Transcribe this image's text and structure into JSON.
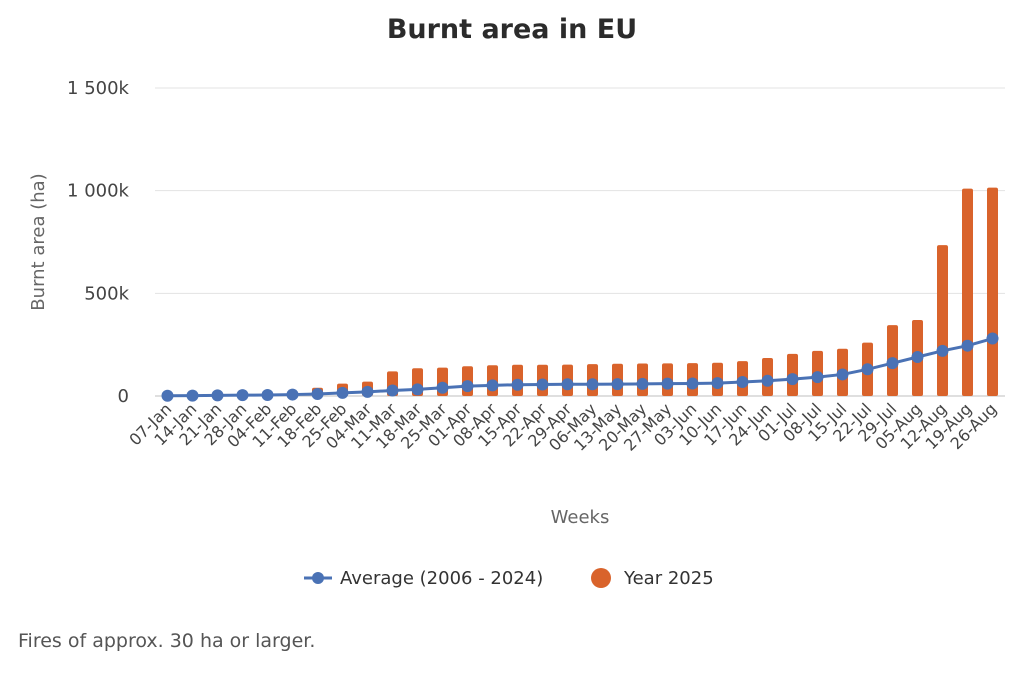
{
  "chart_data": {
    "type": "bar",
    "title": "Burnt area in EU",
    "xlabel": "Weeks",
    "ylabel": "Burnt area (ha)",
    "ylim": [
      0,
      1500000
    ],
    "yticks": [
      0,
      500000,
      1000000,
      1500000
    ],
    "ytick_labels": [
      "0",
      "500k",
      "1 000k",
      "1 500k"
    ],
    "grid": true,
    "legend_position": "bottom-center",
    "categories": [
      "07-Jan",
      "14-Jan",
      "21-Jan",
      "28-Jan",
      "04-Feb",
      "11-Feb",
      "18-Feb",
      "25-Feb",
      "04-Mar",
      "11-Mar",
      "18-Mar",
      "25-Mar",
      "01-Apr",
      "08-Apr",
      "15-Apr",
      "22-Apr",
      "29-Apr",
      "06-May",
      "13-May",
      "20-May",
      "27-May",
      "03-Jun",
      "10-Jun",
      "17-Jun",
      "24-Jun",
      "01-Jul",
      "08-Jul",
      "15-Jul",
      "22-Jul",
      "29-Jul",
      "05-Aug",
      "12-Aug",
      "19-Aug",
      "26-Aug"
    ],
    "series": [
      {
        "name": "Average (2006 - 2024)",
        "type": "line",
        "color": "#4a72b5",
        "values": [
          1000,
          2000,
          3000,
          4000,
          5000,
          7000,
          10000,
          15000,
          20000,
          27000,
          32000,
          40000,
          48000,
          52000,
          55000,
          56000,
          57000,
          57000,
          58000,
          59000,
          60000,
          61000,
          63000,
          68000,
          74000,
          82000,
          92000,
          105000,
          130000,
          160000,
          190000,
          220000,
          245000,
          280000
        ]
      },
      {
        "name": "Year 2025",
        "type": "bar",
        "color": "#d9632b",
        "values": [
          3000,
          5000,
          6000,
          8000,
          12000,
          18000,
          40000,
          60000,
          70000,
          120000,
          135000,
          138000,
          145000,
          150000,
          152000,
          152000,
          153000,
          155000,
          157000,
          158000,
          159000,
          160000,
          162000,
          170000,
          185000,
          205000,
          220000,
          230000,
          260000,
          345000,
          370000,
          735000,
          1010000,
          1015000
        ]
      }
    ]
  },
  "footnote": "Fires of approx. 30 ha or larger."
}
